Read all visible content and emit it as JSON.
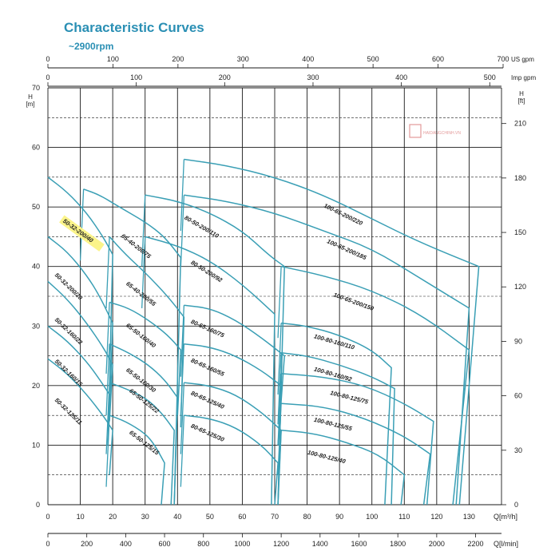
{
  "title": "Characteristic Curves",
  "subtitle": "~2900rpm",
  "watermark": "HAIDANGCHINH.VN",
  "chart_data": {
    "type": "line",
    "grid": true,
    "axes": {
      "left": {
        "label": "H",
        "unit": "[m]",
        "range": [
          0,
          70
        ],
        "ticks": [
          0,
          10,
          20,
          30,
          40,
          50,
          60,
          70
        ]
      },
      "right": {
        "label": "H",
        "unit": "[ft]",
        "range": [
          0,
          229.66
        ],
        "ticks": [
          0,
          30,
          60,
          90,
          120,
          150,
          180,
          210
        ]
      },
      "bottom1": {
        "label": "Q[m³/h]",
        "range": [
          0,
          140
        ],
        "ticks": [
          0,
          10,
          20,
          30,
          40,
          50,
          60,
          70,
          80,
          90,
          100,
          110,
          120,
          130
        ]
      },
      "bottom2": {
        "label": "Q[l/min]",
        "range": [
          0,
          2333.3
        ],
        "ticks": [
          0,
          200,
          400,
          600,
          800,
          1000,
          1200,
          1400,
          1600,
          1800,
          2000,
          2200
        ]
      },
      "top1": {
        "label": "US gpm",
        "range": [
          0,
          616.4
        ],
        "ticks": [
          0,
          100,
          200,
          300,
          400,
          500,
          600,
          700
        ]
      },
      "top2": {
        "label": "Imp gpm",
        "range": [
          0,
          513.3
        ],
        "ticks": [
          0,
          100,
          200,
          300,
          400,
          500
        ]
      }
    },
    "series": [
      {
        "name": "50-32-200/40",
        "points": [
          [
            0,
            55
          ],
          [
            6,
            52.5
          ],
          [
            12,
            49
          ],
          [
            17,
            45
          ],
          [
            20,
            42
          ]
        ],
        "drop": [
          20,
          42,
          19,
          20
        ],
        "label_at": [
          4.5,
          47.5
        ],
        "rot": 36,
        "hl": true
      },
      {
        "name": "50-32-200/20",
        "points": [
          [
            0,
            45
          ],
          [
            6,
            42.5
          ],
          [
            12,
            38.5
          ],
          [
            16,
            35
          ],
          [
            20,
            30.5
          ]
        ],
        "drop": [
          20,
          30.5,
          19,
          15
        ],
        "label_at": [
          2,
          38.5
        ],
        "rot": 44
      },
      {
        "name": "50-32-160/22",
        "points": [
          [
            0,
            37.5
          ],
          [
            6,
            34.5
          ],
          [
            12,
            30.5
          ],
          [
            17,
            26.5
          ],
          [
            20,
            23.5
          ]
        ],
        "drop": [
          20,
          23.5,
          19,
          14
        ],
        "label_at": [
          2,
          31
        ],
        "rot": 44
      },
      {
        "name": "50-32-160/15",
        "points": [
          [
            0,
            30
          ],
          [
            6,
            27.5
          ],
          [
            12,
            24
          ],
          [
            16,
            21
          ],
          [
            19,
            18.5
          ]
        ],
        "drop": [
          19,
          18.5,
          18.5,
          10
        ],
        "label_at": [
          2,
          24
        ],
        "rot": 44
      },
      {
        "name": "50-32-125/11",
        "points": [
          [
            0,
            24.5
          ],
          [
            6,
            22
          ],
          [
            12,
            18.5
          ],
          [
            17,
            15
          ],
          [
            20,
            12.5
          ]
        ],
        "drop": [
          20,
          12.5,
          19,
          5
        ],
        "label_at": [
          2,
          17.5
        ],
        "rot": 44
      },
      {
        "name": "65-40-200/75",
        "points": [
          [
            11,
            53
          ],
          [
            16,
            52
          ],
          [
            22,
            50
          ],
          [
            30,
            47.5
          ],
          [
            36,
            45
          ],
          [
            41,
            41.5
          ]
        ],
        "drop": [
          41,
          41.5,
          39,
          0
        ],
        "label_at": [
          22.5,
          45
        ],
        "rot": 38
      },
      {
        "name": "65-40-200/55",
        "points": [
          [
            19,
            45
          ],
          [
            24,
            42
          ],
          [
            30,
            39
          ],
          [
            37,
            35
          ],
          [
            42,
            31.5
          ]
        ],
        "drop": [
          42,
          31.5,
          41,
          13
        ],
        "label_at": [
          24,
          37
        ],
        "rot": 38
      },
      {
        "name": "65-50-160/40",
        "points": [
          [
            19,
            34
          ],
          [
            25,
            33
          ],
          [
            31,
            31
          ],
          [
            37,
            28.5
          ],
          [
            41,
            26
          ]
        ],
        "drop": [
          41,
          26,
          40,
          15
        ],
        "label_at": [
          24,
          30
        ],
        "rot": 38
      },
      {
        "name": "65-50-160/30",
        "points": [
          [
            19,
            27
          ],
          [
            25,
            25.5
          ],
          [
            31,
            23.5
          ],
          [
            36,
            21
          ],
          [
            40,
            18
          ]
        ],
        "drop": [
          40,
          18,
          39,
          0
        ],
        "label_at": [
          24,
          22.5
        ],
        "rot": 38
      },
      {
        "name": "65-50-125/22",
        "points": [
          [
            19,
            20.5
          ],
          [
            24,
            19.5
          ],
          [
            30,
            18
          ],
          [
            35,
            15.5
          ],
          [
            39,
            12.5
          ]
        ],
        "drop": [
          39,
          12.5,
          38,
          0
        ],
        "label_at": [
          25,
          19
        ],
        "rot": 38
      },
      {
        "name": "65-50-125/15",
        "points": [
          [
            19,
            15
          ],
          [
            24,
            14
          ],
          [
            30,
            12
          ],
          [
            33,
            10
          ],
          [
            36,
            7
          ]
        ],
        "drop": [
          36,
          7,
          35,
          0
        ],
        "label_at": [
          25,
          12
        ],
        "rot": 38
      },
      {
        "name": "80-50-200/110",
        "points": [
          [
            30,
            52
          ],
          [
            40,
            51
          ],
          [
            50,
            49
          ],
          [
            60,
            46
          ],
          [
            68,
            42
          ],
          [
            73,
            40
          ]
        ],
        "drop": [
          73,
          40,
          71,
          0
        ],
        "label_at": [
          42,
          48
        ],
        "rot": 30
      },
      {
        "name": "80-50-200/92",
        "points": [
          [
            30,
            45
          ],
          [
            40,
            43.5
          ],
          [
            50,
            41
          ],
          [
            60,
            37
          ],
          [
            70,
            32
          ]
        ],
        "drop": [
          70,
          32,
          69,
          0
        ],
        "label_at": [
          44,
          40.5
        ],
        "rot": 32
      },
      {
        "name": "80-65-160/75",
        "points": [
          [
            42,
            33.5
          ],
          [
            50,
            33
          ],
          [
            58,
            31
          ],
          [
            66,
            28
          ],
          [
            73,
            25
          ]
        ],
        "drop": [
          73,
          25,
          71,
          10
        ],
        "label_at": [
          44,
          30.5
        ],
        "rot": 24
      },
      {
        "name": "80-65-160/55",
        "points": [
          [
            42,
            27
          ],
          [
            50,
            26.5
          ],
          [
            58,
            25
          ],
          [
            66,
            22.5
          ],
          [
            72,
            20
          ]
        ],
        "drop": [
          72,
          20,
          71,
          0
        ],
        "label_at": [
          44,
          24
        ],
        "rot": 24
      },
      {
        "name": "80-65-125/40",
        "points": [
          [
            42,
            20.5
          ],
          [
            50,
            20
          ],
          [
            58,
            18.5
          ],
          [
            66,
            15.5
          ],
          [
            72,
            12.5
          ]
        ],
        "drop": [
          72,
          12.5,
          71,
          0
        ],
        "label_at": [
          44,
          18.5
        ],
        "rot": 24
      },
      {
        "name": "80-65-125/30",
        "points": [
          [
            42,
            15
          ],
          [
            50,
            14.5
          ],
          [
            58,
            13
          ],
          [
            66,
            10
          ],
          [
            71,
            7
          ]
        ],
        "drop": [
          71,
          7,
          70,
          0
        ],
        "label_at": [
          44,
          13
        ],
        "rot": 24
      },
      {
        "name": "100-65-200/220",
        "points": [
          [
            42,
            58
          ],
          [
            55,
            57
          ],
          [
            70,
            55
          ],
          [
            85,
            52
          ],
          [
            100,
            48
          ],
          [
            115,
            44
          ],
          [
            133,
            40
          ]
        ],
        "drop": [
          133,
          40,
          127,
          0
        ],
        "label_at": [
          85,
          50
        ],
        "rot": 26
      },
      {
        "name": "100-65-200/185",
        "points": [
          [
            42,
            52
          ],
          [
            55,
            51
          ],
          [
            70,
            49
          ],
          [
            85,
            46
          ],
          [
            100,
            43
          ],
          [
            115,
            38
          ],
          [
            130,
            33
          ]
        ],
        "drop": [
          130,
          33,
          126,
          0
        ],
        "label_at": [
          86,
          44
        ],
        "rot": 24
      },
      {
        "name": "100-65-200/150",
        "points": [
          [
            72,
            40
          ],
          [
            85,
            38.5
          ],
          [
            100,
            36
          ],
          [
            115,
            32
          ],
          [
            130,
            26
          ]
        ],
        "drop": [
          130,
          26,
          125,
          0
        ],
        "label_at": [
          88,
          35
        ],
        "rot": 20
      },
      {
        "name": "100-80-160/110",
        "points": [
          [
            72,
            30.5
          ],
          [
            80,
            30
          ],
          [
            90,
            28.5
          ],
          [
            100,
            26
          ],
          [
            106,
            23
          ]
        ],
        "drop": [
          106,
          23,
          104,
          0
        ],
        "label_at": [
          82,
          28
        ],
        "rot": 16
      },
      {
        "name": "100-80-160/92",
        "points": [
          [
            72,
            25.5
          ],
          [
            80,
            25
          ],
          [
            90,
            23.5
          ],
          [
            100,
            21.5
          ],
          [
            107,
            19.5
          ]
        ],
        "drop": [
          107,
          19.5,
          106,
          0
        ],
        "label_at": [
          82,
          22.5
        ],
        "rot": 16
      },
      {
        "name": "100-80-125/75",
        "points": [
          [
            72,
            22
          ],
          [
            85,
            21.5
          ],
          [
            98,
            20
          ],
          [
            110,
            17
          ],
          [
            119,
            14
          ]
        ],
        "drop": [
          119,
          14,
          117,
          0
        ],
        "label_at": [
          87,
          18.5
        ],
        "rot": 14
      },
      {
        "name": "100-80-125/55",
        "points": [
          [
            72,
            17
          ],
          [
            85,
            16.5
          ],
          [
            98,
            14.5
          ],
          [
            110,
            11.5
          ],
          [
            118,
            8.5
          ]
        ],
        "drop": [
          118,
          8.5,
          116,
          0
        ],
        "label_at": [
          82,
          14
        ],
        "rot": 14
      },
      {
        "name": "100-80-125/40",
        "points": [
          [
            72,
            12.5
          ],
          [
            82,
            12
          ],
          [
            92,
            10.5
          ],
          [
            102,
            8.5
          ],
          [
            110,
            5
          ]
        ],
        "drop": [
          110,
          5,
          109,
          0
        ],
        "label_at": [
          80,
          8.5
        ],
        "rot": 14
      }
    ]
  }
}
